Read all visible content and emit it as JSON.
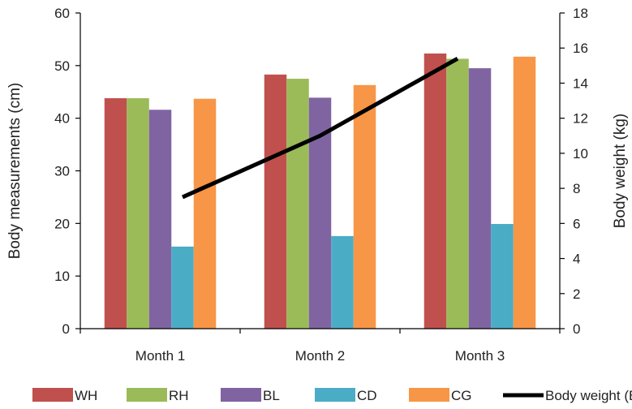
{
  "chart_data": {
    "type": "bar",
    "title": "",
    "categories": [
      "Month 1",
      "Month 2",
      "Month 3"
    ],
    "series": [
      {
        "name": "WH",
        "color": "#C0504D",
        "values": [
          43.8,
          48.3,
          52.3
        ]
      },
      {
        "name": "RH",
        "color": "#9BBB59",
        "values": [
          43.8,
          47.5,
          51.3
        ]
      },
      {
        "name": "BL",
        "color": "#8064A2",
        "values": [
          41.6,
          43.9,
          49.5
        ]
      },
      {
        "name": "CD",
        "color": "#4BACC6",
        "values": [
          15.6,
          17.6,
          19.9
        ]
      },
      {
        "name": "CG",
        "color": "#F79646",
        "values": [
          43.7,
          46.3,
          51.7
        ]
      }
    ],
    "line_series": {
      "name": "Body weight (BW)",
      "color": "#000000",
      "values": [
        7.5,
        11.0,
        15.4
      ],
      "axis": "right"
    },
    "ylabel_left": "Body measurements (cm)",
    "ylabel_right": "Body weight (kg)",
    "ylim_left": [
      0,
      60
    ],
    "yticks_left": [
      0,
      10,
      20,
      30,
      40,
      50,
      60
    ],
    "ylim_right": [
      0,
      18
    ],
    "yticks_right": [
      0,
      2,
      4,
      6,
      8,
      10,
      12,
      14,
      16,
      18
    ],
    "grid": false,
    "legend_position": "bottom"
  }
}
